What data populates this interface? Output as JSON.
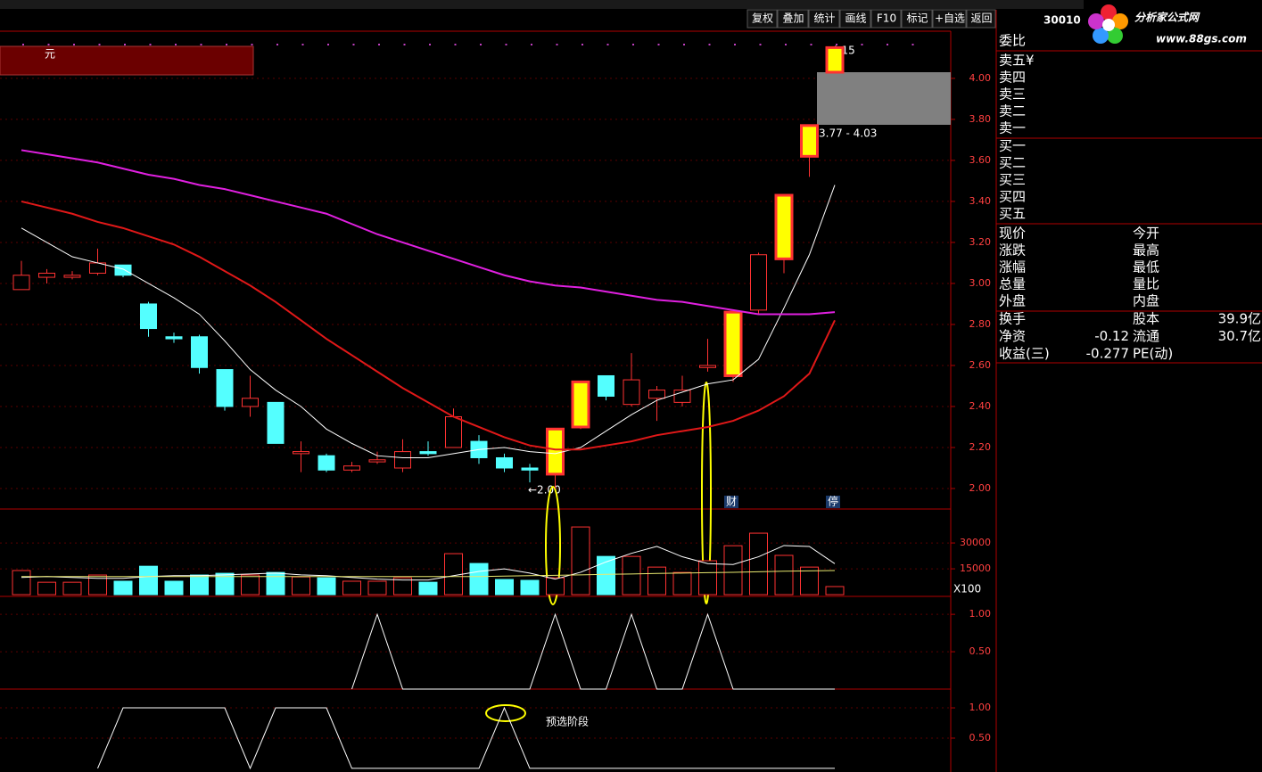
{
  "toolbar": {
    "buttons": [
      "复权",
      "叠加",
      "统计",
      "画线",
      "F10",
      "标记",
      "+自选",
      "返回"
    ],
    "code": "30010"
  },
  "logo": {
    "title": "分析家公式网",
    "url": "www.88gs.com"
  },
  "quote_panel": {
    "order_ratio": "委比",
    "asks": [
      "卖五¥",
      "卖四",
      "卖三",
      "卖二",
      "卖一"
    ],
    "bids": [
      "买一",
      "买二",
      "买三",
      "买四",
      "买五"
    ],
    "stats": [
      [
        "现价",
        "今开"
      ],
      [
        "涨跌",
        "最高"
      ],
      [
        "涨幅",
        "最低"
      ],
      [
        "总量",
        "量比"
      ],
      [
        "外盘",
        "内盘"
      ]
    ],
    "fundamentals": [
      {
        "label": "换手",
        "label2": "股本",
        "value2": "39.9亿"
      },
      {
        "label": "净资",
        "value": -0.12,
        "label2": "流通",
        "value2": "30.7亿"
      },
      {
        "label": "收益(三)",
        "value": -0.277,
        "label2": "PE(动)"
      }
    ]
  },
  "chart_data": [
    {
      "type": "candlestick",
      "open": [
        2.97,
        3.03,
        3.03,
        3.05,
        3.09,
        2.9,
        2.74,
        2.74,
        2.58,
        2.4,
        2.42,
        2.17,
        2.16,
        2.09,
        2.13,
        2.1,
        2.18,
        2.2,
        2.23,
        2.15,
        2.1,
        2.07,
        2.3,
        2.55,
        2.41,
        2.44,
        2.42,
        2.59,
        2.55,
        2.87,
        3.12,
        3.62,
        4.03
      ],
      "high": [
        3.11,
        3.07,
        3.06,
        3.17,
        3.09,
        2.91,
        2.76,
        2.75,
        2.58,
        2.55,
        2.42,
        2.23,
        2.17,
        2.13,
        2.18,
        2.24,
        2.23,
        2.39,
        2.26,
        2.17,
        2.12,
        2.29,
        2.52,
        2.55,
        2.66,
        2.5,
        2.55,
        2.73,
        2.86,
        3.15,
        3.43,
        3.77,
        4.15
      ],
      "low": [
        2.97,
        3.0,
        3.02,
        3.04,
        3.03,
        2.74,
        2.71,
        2.56,
        2.38,
        2.35,
        2.22,
        2.08,
        2.08,
        2.08,
        2.12,
        2.08,
        2.16,
        2.2,
        2.12,
        2.08,
        2.03,
        2.0,
        2.29,
        2.43,
        2.4,
        2.33,
        2.4,
        2.57,
        2.52,
        2.85,
        3.05,
        3.52,
        4.03
      ],
      "close": [
        3.04,
        3.05,
        3.04,
        3.1,
        3.04,
        2.78,
        2.73,
        2.59,
        2.4,
        2.44,
        2.22,
        2.18,
        2.09,
        2.11,
        2.14,
        2.18,
        2.17,
        2.35,
        2.15,
        2.1,
        2.09,
        2.29,
        2.52,
        2.45,
        2.53,
        2.48,
        2.48,
        2.6,
        2.86,
        3.14,
        3.43,
        3.77,
        4.15
      ],
      "highlighted": [
        false,
        false,
        false,
        false,
        false,
        false,
        false,
        false,
        false,
        false,
        false,
        false,
        false,
        false,
        false,
        false,
        false,
        false,
        false,
        false,
        false,
        true,
        true,
        false,
        false,
        false,
        false,
        false,
        true,
        false,
        true,
        true,
        true
      ],
      "up_color": "#ff3232",
      "down_color": "#54ffff",
      "highlight_color": "#ffff00",
      "lines": [
        {
          "color": "#ffffff",
          "values": [
            3.27,
            3.2,
            3.13,
            3.1,
            3.07,
            3.0,
            2.93,
            2.85,
            2.72,
            2.58,
            2.48,
            2.4,
            2.29,
            2.22,
            2.16,
            2.15,
            2.15,
            2.17,
            2.19,
            2.2,
            2.18,
            2.17,
            2.2,
            2.28,
            2.36,
            2.43,
            2.47,
            2.51,
            2.53,
            2.63,
            2.88,
            3.14,
            3.48
          ]
        },
        {
          "color": "#e01818",
          "values": [
            3.4,
            3.37,
            3.34,
            3.3,
            3.27,
            3.23,
            3.19,
            3.13,
            3.06,
            2.99,
            2.91,
            2.82,
            2.73,
            2.65,
            2.57,
            2.49,
            2.42,
            2.35,
            2.3,
            2.25,
            2.21,
            2.19,
            2.19,
            2.21,
            2.23,
            2.26,
            2.28,
            2.3,
            2.33,
            2.38,
            2.45,
            2.56,
            2.82
          ]
        },
        {
          "color": "#e020e0",
          "values": [
            3.65,
            3.63,
            3.61,
            3.59,
            3.56,
            3.53,
            3.51,
            3.48,
            3.46,
            3.43,
            3.4,
            3.37,
            3.34,
            3.29,
            3.24,
            3.2,
            3.16,
            3.12,
            3.08,
            3.04,
            3.01,
            2.99,
            2.98,
            2.96,
            2.94,
            2.92,
            2.91,
            2.89,
            2.87,
            2.85,
            2.85,
            2.85,
            2.86
          ]
        }
      ],
      "ylim": [
        1.9,
        4.23
      ],
      "yticks": [
        {
          "value": 2,
          "label": "2.00"
        },
        {
          "value": 2.2,
          "label": "2.20"
        },
        {
          "value": 2.4,
          "label": "2.40"
        },
        {
          "value": 2.6,
          "label": "2.60"
        },
        {
          "value": 2.8,
          "label": "2.80"
        },
        {
          "value": 3,
          "label": "3.00"
        },
        {
          "value": 3.2,
          "label": "3.20"
        },
        {
          "value": 3.4,
          "label": "3.40"
        },
        {
          "value": 3.6,
          "label": "3.60"
        },
        {
          "value": 3.8,
          "label": "3.80"
        },
        {
          "value": 4,
          "label": "4.00"
        }
      ],
      "annotations": {
        "box_label": "元",
        "high_label": "4.15",
        "range_label": "3.77 - 4.03",
        "low_label": "←2.00",
        "markers": [
          "财",
          "停"
        ]
      }
    },
    {
      "type": "bar",
      "values": [
        14000,
        7200,
        7200,
        11400,
        7800,
        16500,
        7800,
        11400,
        12400,
        11400,
        12900,
        10300,
        9800,
        7800,
        7800,
        9800,
        7200,
        23800,
        18100,
        8800,
        8300,
        9800,
        39300,
        22200,
        22200,
        16000,
        12900,
        19700,
        28400,
        35700,
        22800,
        16000,
        4700
      ],
      "lines": [
        {
          "color": "#ffffff",
          "values": [
            10000,
            10500,
            10000,
            9500,
            9500,
            10500,
            11000,
            11000,
            11500,
            12000,
            12500,
            11500,
            11000,
            10000,
            9000,
            8500,
            8500,
            11000,
            13500,
            15000,
            12500,
            9000,
            13000,
            19000,
            24000,
            28000,
            22000,
            18000,
            17500,
            22000,
            28500,
            28000,
            18000
          ]
        },
        {
          "color": "#e8e870",
          "values": [
            10500,
            10500,
            10500,
            10500,
            10500,
            10500,
            10500,
            10500,
            10500,
            10500,
            10500,
            10500,
            10500,
            10500,
            10500,
            10500,
            10500,
            10500,
            10500,
            10800,
            11000,
            11200,
            11500,
            11800,
            12000,
            12300,
            12500,
            12800,
            13000,
            13300,
            13600,
            13800,
            14000
          ]
        }
      ],
      "ylim": [
        -1000,
        49700
      ],
      "yticks": [
        15000,
        30000
      ],
      "unit_label": "X100"
    },
    {
      "type": "line",
      "color": "#ffffff",
      "values": [
        null,
        null,
        null,
        null,
        null,
        null,
        null,
        null,
        null,
        null,
        null,
        null,
        null,
        0,
        1,
        0,
        0,
        0,
        0,
        0,
        0,
        1,
        0,
        0,
        1,
        0,
        0,
        1,
        0,
        0,
        0,
        0,
        0
      ],
      "ylim": [
        0,
        1.24
      ],
      "yticks": [
        {
          "value": 0.5,
          "label": "0.50"
        },
        {
          "value": 1,
          "label": "1.00"
        }
      ]
    },
    {
      "type": "line",
      "color": "#ffffff",
      "values": [
        null,
        null,
        null,
        0,
        1,
        1,
        1,
        1,
        1,
        0,
        1,
        1,
        1,
        0,
        0,
        0,
        0,
        0,
        0,
        1,
        0,
        0,
        0,
        0,
        0,
        0,
        0,
        0,
        0,
        0,
        0,
        0,
        0
      ],
      "ylim": [
        -0.06,
        1.31
      ],
      "yticks": [
        {
          "value": 0.5,
          "label": "0.50"
        },
        {
          "value": 1,
          "label": "1.00"
        }
      ],
      "annotation": "预选阶段"
    }
  ]
}
